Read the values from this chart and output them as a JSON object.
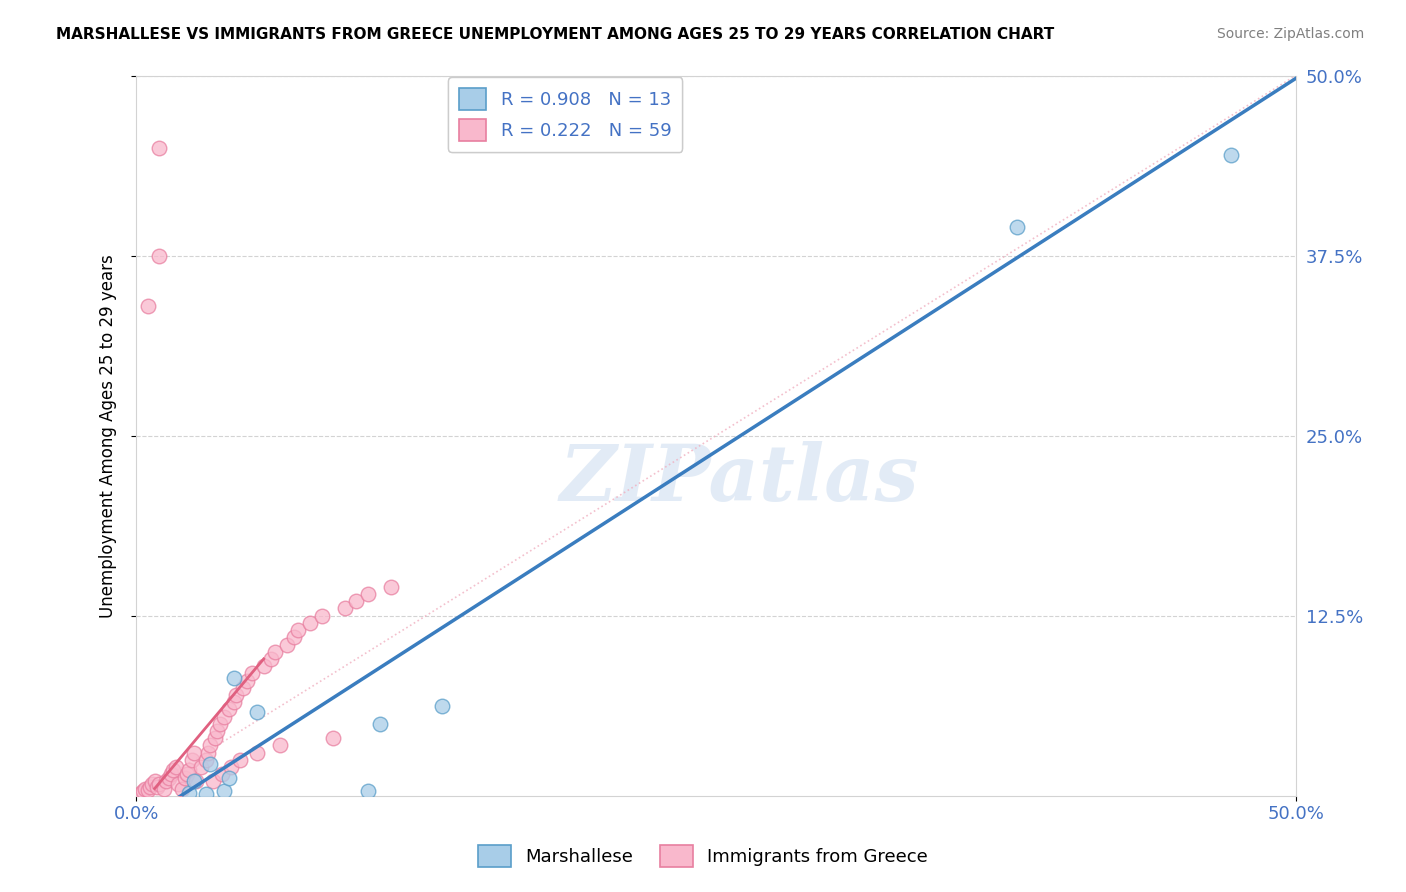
{
  "title": "MARSHALLESE VS IMMIGRANTS FROM GREECE UNEMPLOYMENT AMONG AGES 25 TO 29 YEARS CORRELATION CHART",
  "source": "Source: ZipAtlas.com",
  "ylabel": "Unemployment Among Ages 25 to 29 years",
  "xlim": [
    0,
    0.5
  ],
  "ylim": [
    0,
    0.5
  ],
  "blue_R": 0.908,
  "blue_N": 13,
  "pink_R": 0.222,
  "pink_N": 59,
  "blue_scatter_color": "#a8cde8",
  "blue_edge_color": "#5a9ec9",
  "pink_scatter_color": "#f9b8cc",
  "pink_edge_color": "#e87fa0",
  "blue_line_color": "#3a7dbf",
  "pink_dotted_color": "#f0b0c0",
  "pink_solid_color": "#e06080",
  "watermark_text": "ZIPatlas",
  "legend_label_blue": "Marshallese",
  "legend_label_pink": "Immigrants from Greece",
  "blue_points_x": [
    0.023,
    0.025,
    0.03,
    0.032,
    0.038,
    0.04,
    0.042,
    0.052,
    0.1,
    0.105,
    0.132,
    0.38,
    0.472
  ],
  "blue_points_y": [
    0.002,
    0.01,
    0.001,
    0.022,
    0.003,
    0.012,
    0.082,
    0.058,
    0.003,
    0.05,
    0.062,
    0.395,
    0.445
  ],
  "pink_points_x": [
    0.002,
    0.003,
    0.004,
    0.005,
    0.006,
    0.007,
    0.008,
    0.009,
    0.01,
    0.01,
    0.012,
    0.013,
    0.014,
    0.015,
    0.016,
    0.017,
    0.018,
    0.02,
    0.021,
    0.022,
    0.023,
    0.024,
    0.025,
    0.026,
    0.028,
    0.03,
    0.031,
    0.032,
    0.033,
    0.034,
    0.035,
    0.036,
    0.037,
    0.038,
    0.04,
    0.041,
    0.042,
    0.043,
    0.045,
    0.046,
    0.048,
    0.05,
    0.052,
    0.055,
    0.058,
    0.06,
    0.062,
    0.065,
    0.068,
    0.07,
    0.075,
    0.08,
    0.085,
    0.09,
    0.095,
    0.1,
    0.11,
    0.01,
    0.005
  ],
  "pink_points_y": [
    0.002,
    0.003,
    0.005,
    0.004,
    0.006,
    0.008,
    0.01,
    0.006,
    0.008,
    0.45,
    0.005,
    0.01,
    0.012,
    0.015,
    0.018,
    0.02,
    0.008,
    0.005,
    0.012,
    0.015,
    0.018,
    0.025,
    0.03,
    0.01,
    0.02,
    0.025,
    0.03,
    0.035,
    0.01,
    0.04,
    0.045,
    0.05,
    0.015,
    0.055,
    0.06,
    0.02,
    0.065,
    0.07,
    0.025,
    0.075,
    0.08,
    0.085,
    0.03,
    0.09,
    0.095,
    0.1,
    0.035,
    0.105,
    0.11,
    0.115,
    0.12,
    0.125,
    0.04,
    0.13,
    0.135,
    0.14,
    0.145,
    0.375,
    0.34
  ],
  "blue_line_x": [
    0.0,
    0.5
  ],
  "blue_line_y": [
    -0.02,
    0.498
  ],
  "pink_dotted_line_x": [
    0.0,
    0.5
  ],
  "pink_dotted_line_y": [
    0.0,
    0.5
  ],
  "pink_solid_line_x": [
    0.008,
    0.055
  ],
  "pink_solid_line_y": [
    0.005,
    0.095
  ]
}
